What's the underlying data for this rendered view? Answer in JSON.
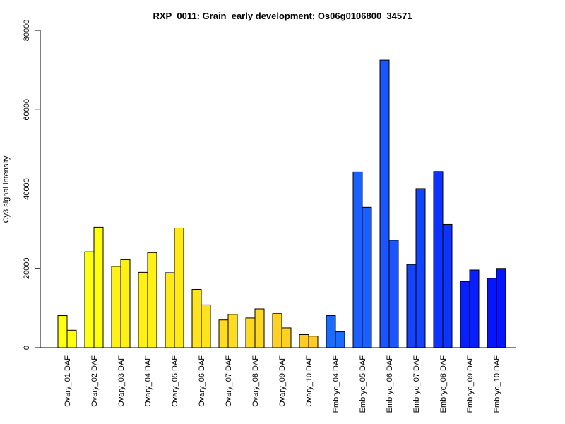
{
  "chart_data": {
    "type": "bar",
    "title": "RXP_0011: Grain_early development; Os06g0106800_34571",
    "xlabel": "",
    "ylabel": "Cy3 signal intensity",
    "ylim": [
      0,
      80000
    ],
    "yticks": [
      0,
      20000,
      40000,
      60000,
      80000
    ],
    "grid": false,
    "categories": [
      "Ovary_01 DAF",
      "Ovary_02 DAF",
      "Ovary_03 DAF",
      "Ovary_04 DAF",
      "Ovary_05 DAF",
      "Ovary_06 DAF",
      "Ovary_07 DAF",
      "Ovary_08 DAF",
      "Ovary_09 DAF",
      "Ovary_10 DAF",
      "Embryo_04 DAF",
      "Embryo_05 DAF",
      "Embryo_06 DAF",
      "Embryo_07 DAF",
      "Embryo_08 DAF",
      "Embryo_09 DAF",
      "Embryo_10 DAF"
    ],
    "colors": [
      "#ffff10",
      "#ffff10",
      "#fff015",
      "#fff015",
      "#ffea18",
      "#ffe31c",
      "#ffdd1e",
      "#ffd820",
      "#ffd222",
      "#ffcc25",
      "#1a6bff",
      "#1a60ff",
      "#1a55ff",
      "#1244ff",
      "#0c33ff",
      "#0820ff",
      "#0515ff"
    ],
    "series": [
      {
        "values": [
          8100,
          24200,
          20500,
          19000,
          18900,
          14700,
          7000,
          7500,
          8600,
          3300,
          8100,
          44300,
          72500,
          21000,
          44400,
          16700,
          17500
        ]
      },
      {
        "values": [
          4400,
          30400,
          22200,
          24000,
          30200,
          10800,
          8400,
          9800,
          5000,
          2900,
          4000,
          35400,
          27100,
          40100,
          31100,
          19600,
          20000
        ]
      }
    ]
  }
}
